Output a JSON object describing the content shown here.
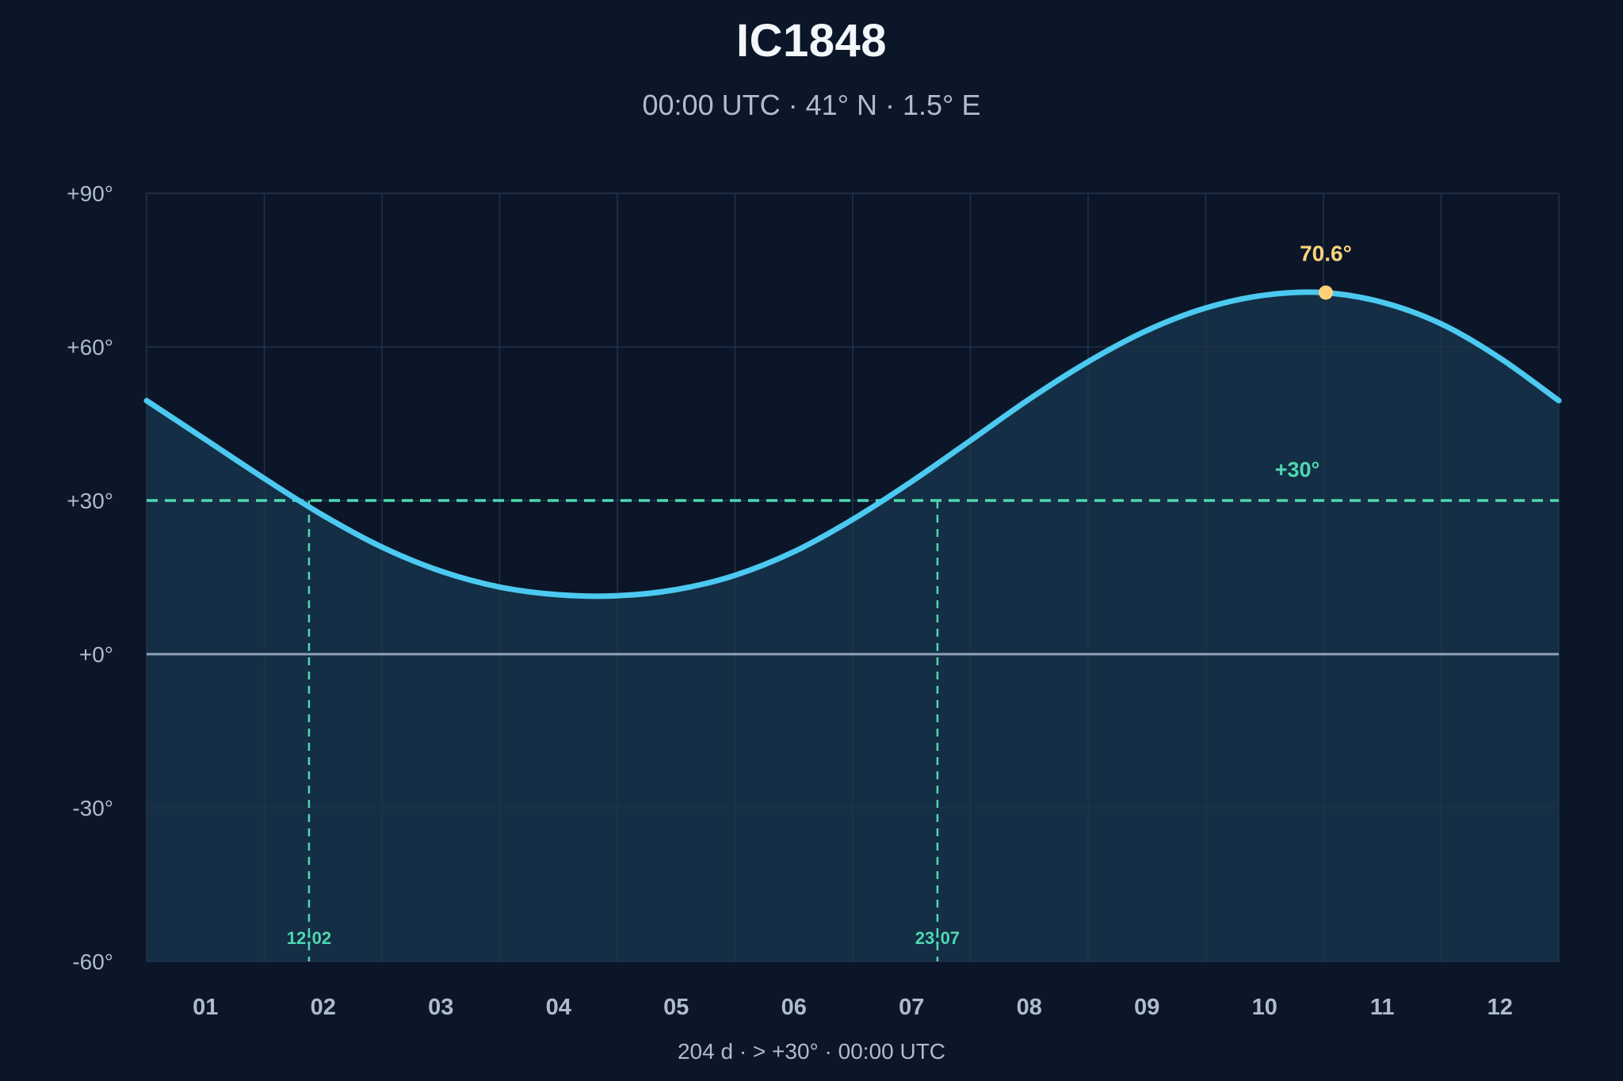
{
  "header": {
    "title": "IC1848",
    "subtitle": "00:00 UTC · 41° N · 1.5° E"
  },
  "footer": {
    "summary": "204 d  ·  > +30°  ·  00:00 UTC"
  },
  "colors": {
    "background": "#0b1628",
    "plot_area": "#0b1628",
    "fill_above_curve": "#142e45",
    "curve": "#4cc9f0",
    "threshold": "#4fd8b0",
    "horizon": "#8fa3b8",
    "grid": "#22324a",
    "peak": "#ffd27a"
  },
  "chart_data": {
    "type": "area",
    "title": "IC1848",
    "subtitle": "00:00 UTC · 41° N · 1.5° E",
    "xlabel": "",
    "ylabel": "",
    "x_tick_labels": [
      "01",
      "02",
      "03",
      "04",
      "05",
      "06",
      "07",
      "08",
      "09",
      "10",
      "11",
      "12"
    ],
    "xlim": [
      0.5,
      12.5
    ],
    "ylim": [
      -60,
      90
    ],
    "y_ticks": [
      -60,
      -30,
      0,
      30,
      60,
      90
    ],
    "y_tick_labels": [
      "-60°",
      "-30°",
      "+0°",
      "+30°",
      "+60°",
      "+90°"
    ],
    "grid": true,
    "series": [
      {
        "x": [
          0.5,
          1.0,
          1.5,
          2.0,
          2.5,
          3.0,
          3.5,
          4.0,
          4.5,
          5.0,
          5.5,
          6.0,
          6.5,
          7.0,
          7.5,
          8.0,
          8.5,
          9.0,
          9.5,
          10.0,
          10.5,
          11.0,
          11.5,
          12.0,
          12.5
        ],
        "values": [
          49.5,
          41.9,
          34.3,
          27.1,
          20.9,
          16.2,
          13.1,
          11.6,
          11.4,
          12.6,
          15.4,
          20.0,
          26.3,
          33.7,
          41.7,
          49.8,
          57.1,
          63.2,
          67.6,
          70.1,
          70.6,
          68.7,
          64.5,
          57.8,
          49.5
        ]
      }
    ],
    "threshold": {
      "value": 30,
      "label": "+30°"
    },
    "horizon": {
      "value": 0
    },
    "crossings": [
      {
        "x": 1.88,
        "label": "12:02"
      },
      {
        "x": 7.22,
        "label": "23:07"
      }
    ],
    "peak": {
      "x": 10.52,
      "value": 70.6,
      "label": "70.6°"
    }
  }
}
